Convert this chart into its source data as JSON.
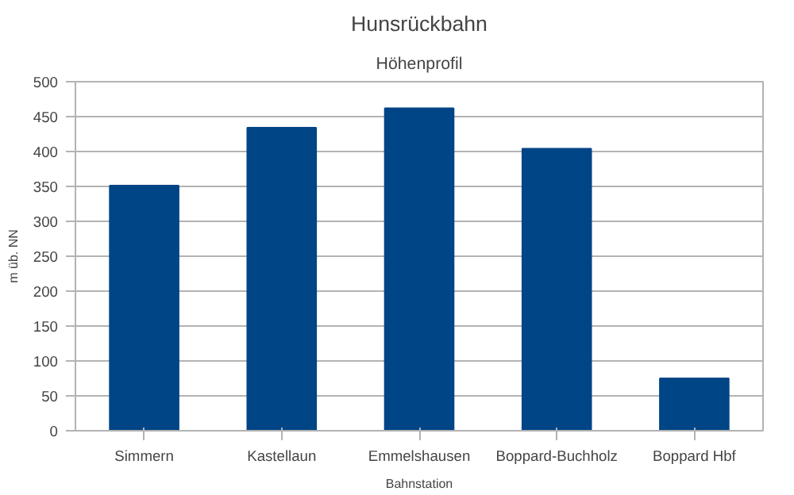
{
  "chart_data": {
    "type": "bar",
    "title": "Hunsrückbahn",
    "subtitle": "Höhenprofil",
    "xlabel": "Bahnstation",
    "ylabel": "m üb. NN",
    "categories": [
      "Simmern",
      "Kastellaun",
      "Emmelshausen",
      "Boppard-Buchholz",
      "Boppard Hbf"
    ],
    "values": [
      351,
      434,
      462,
      404,
      75
    ],
    "color": "#004586",
    "ylim": [
      0,
      500
    ],
    "yticks": [
      0,
      50,
      100,
      150,
      200,
      250,
      300,
      350,
      400,
      450,
      500
    ],
    "grid": "y"
  }
}
